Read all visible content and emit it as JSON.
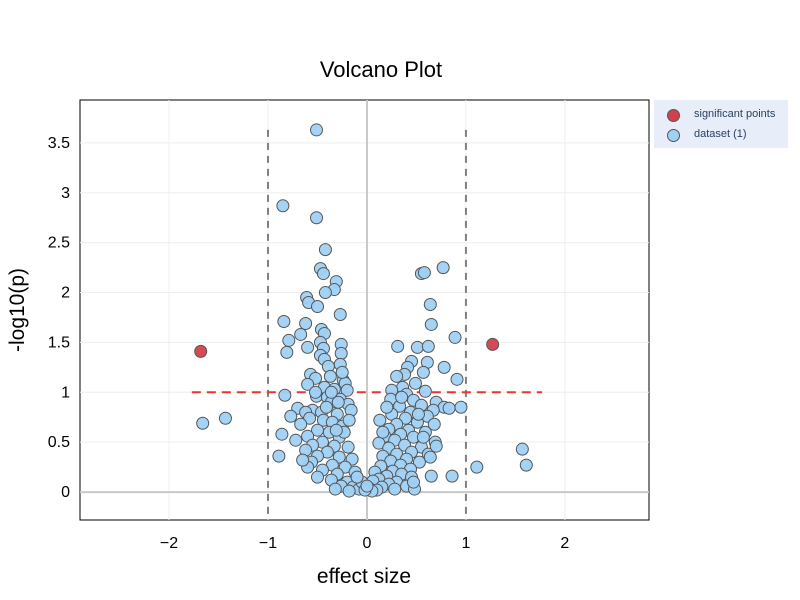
{
  "chart_data": {
    "type": "scatter",
    "title": "Volcano Plot",
    "xlabel": "effect size",
    "ylabel": "-log10(p)",
    "xlim": [
      -2.9,
      2.85
    ],
    "ylim": [
      -0.28,
      3.93
    ],
    "xticks": [
      -2,
      -1,
      0,
      1,
      2
    ],
    "xtick_labels": [
      "−2",
      "−1",
      "0",
      "1",
      "2"
    ],
    "yticks": [
      0,
      0.5,
      1,
      1.5,
      2,
      2.5,
      3,
      3.5
    ],
    "ytick_labels": [
      "0",
      "0.5",
      "1",
      "1.5",
      "2",
      "2.5",
      "3",
      "3.5"
    ],
    "grid": true,
    "legend_position": "top-right outside",
    "thresholds": {
      "x": [
        -1,
        1
      ],
      "y": 1,
      "vertical_line_color": "#808080",
      "horizontal_line_color": "#ee3333"
    },
    "series": [
      {
        "name": "significant points",
        "color": "#d2404c",
        "points": [
          [
            -1.68,
            1.41
          ],
          [
            1.27,
            1.48
          ]
        ]
      },
      {
        "name": "dataset (1)",
        "color": "#9fd1f5",
        "points": [
          [
            -0.51,
            3.63
          ],
          [
            -0.85,
            2.87
          ],
          [
            -0.51,
            2.75
          ],
          [
            -0.42,
            2.43
          ],
          [
            -0.47,
            2.24
          ],
          [
            -0.44,
            2.19
          ],
          [
            -0.31,
            2.11
          ],
          [
            -0.33,
            2.03
          ],
          [
            -0.42,
            2.0
          ],
          [
            -0.61,
            1.95
          ],
          [
            -0.59,
            1.9
          ],
          [
            -0.5,
            1.86
          ],
          [
            -0.27,
            1.78
          ],
          [
            -0.84,
            1.71
          ],
          [
            -0.62,
            1.69
          ],
          [
            -0.46,
            1.63
          ],
          [
            -0.43,
            1.59
          ],
          [
            -0.67,
            1.58
          ],
          [
            -0.79,
            1.52
          ],
          [
            -0.47,
            1.5
          ],
          [
            -0.26,
            1.48
          ],
          [
            -0.6,
            1.45
          ],
          [
            -0.44,
            1.44
          ],
          [
            -0.81,
            1.4
          ],
          [
            -0.26,
            1.39
          ],
          [
            -0.47,
            1.37
          ],
          [
            -0.43,
            1.33
          ],
          [
            -0.27,
            1.28
          ],
          [
            -0.39,
            1.26
          ],
          [
            -0.57,
            1.18
          ],
          [
            -0.37,
            1.16
          ],
          [
            -0.52,
            1.14
          ],
          [
            -0.24,
            1.12
          ],
          [
            -0.22,
            1.09
          ],
          [
            -0.6,
            1.08
          ],
          [
            -0.43,
            1.05
          ],
          [
            -0.33,
            1.03
          ],
          [
            -0.2,
            1.02
          ],
          [
            -0.83,
            0.97
          ],
          [
            -0.51,
            0.96
          ],
          [
            -0.4,
            0.95
          ],
          [
            -0.27,
            0.93
          ],
          [
            -0.36,
            0.9
          ],
          [
            -0.19,
            0.88
          ],
          [
            -0.7,
            0.84
          ],
          [
            -0.55,
            0.82
          ],
          [
            -0.46,
            0.8
          ],
          [
            -0.62,
            0.8
          ],
          [
            -0.3,
            0.78
          ],
          [
            -0.16,
            0.82
          ],
          [
            -0.77,
            0.76
          ],
          [
            -0.58,
            0.74
          ],
          [
            -0.44,
            0.72
          ],
          [
            -0.35,
            0.7
          ],
          [
            -0.67,
            0.68
          ],
          [
            -0.25,
            0.66
          ],
          [
            -0.5,
            0.62
          ],
          [
            -0.38,
            0.6
          ],
          [
            -0.6,
            0.56
          ],
          [
            -0.28,
            0.55
          ],
          [
            -0.72,
            0.52
          ],
          [
            -0.45,
            0.5
          ],
          [
            -0.55,
            0.47
          ],
          [
            -0.33,
            0.46
          ],
          [
            -0.19,
            0.45
          ],
          [
            -0.62,
            0.42
          ],
          [
            -0.4,
            0.4
          ],
          [
            -0.5,
            0.36
          ],
          [
            -0.28,
            0.35
          ],
          [
            -0.15,
            0.33
          ],
          [
            -0.56,
            0.3
          ],
          [
            -0.35,
            0.27
          ],
          [
            -0.22,
            0.25
          ],
          [
            -0.45,
            0.22
          ],
          [
            -0.3,
            0.18
          ],
          [
            -0.12,
            0.2
          ],
          [
            -0.5,
            0.15
          ],
          [
            -0.36,
            0.12
          ],
          [
            -0.2,
            0.1
          ],
          [
            -0.26,
            0.06
          ],
          [
            -0.14,
            0.05
          ],
          [
            -0.08,
            0.03
          ],
          [
            -0.32,
            0.03
          ],
          [
            -0.18,
            0.01
          ],
          [
            -0.05,
            0.1
          ],
          [
            -0.1,
            0.15
          ],
          [
            -0.6,
            0.25
          ],
          [
            -0.65,
            0.32
          ],
          [
            -0.86,
            0.58
          ],
          [
            -0.89,
            0.36
          ],
          [
            -1.66,
            0.69
          ],
          [
            -1.43,
            0.74
          ],
          [
            -0.23,
            0.6
          ],
          [
            -0.31,
            0.62
          ],
          [
            -0.41,
            0.85
          ],
          [
            -0.18,
            0.72
          ],
          [
            -0.52,
            1.0
          ],
          [
            -0.36,
            1.0
          ],
          [
            -0.29,
            0.9
          ],
          [
            -0.25,
            1.2
          ],
          [
            0.55,
            2.19
          ],
          [
            0.58,
            2.2
          ],
          [
            0.77,
            2.25
          ],
          [
            0.64,
            1.88
          ],
          [
            0.65,
            1.68
          ],
          [
            0.89,
            1.55
          ],
          [
            0.31,
            1.46
          ],
          [
            0.51,
            1.45
          ],
          [
            0.62,
            1.46
          ],
          [
            0.45,
            1.31
          ],
          [
            0.61,
            1.3
          ],
          [
            0.41,
            1.25
          ],
          [
            0.78,
            1.25
          ],
          [
            0.57,
            1.2
          ],
          [
            0.38,
            1.18
          ],
          [
            0.3,
            1.16
          ],
          [
            0.91,
            1.13
          ],
          [
            0.49,
            1.09
          ],
          [
            0.36,
            1.05
          ],
          [
            0.25,
            1.02
          ],
          [
            0.59,
            1.01
          ],
          [
            0.4,
            0.98
          ],
          [
            0.24,
            0.93
          ],
          [
            0.47,
            0.92
          ],
          [
            0.7,
            0.9
          ],
          [
            0.55,
            0.87
          ],
          [
            0.33,
            0.86
          ],
          [
            0.78,
            0.85
          ],
          [
            0.83,
            0.84
          ],
          [
            0.95,
            0.85
          ],
          [
            0.67,
            0.82
          ],
          [
            0.44,
            0.8
          ],
          [
            0.25,
            0.78
          ],
          [
            0.61,
            0.76
          ],
          [
            0.39,
            0.74
          ],
          [
            0.13,
            0.72
          ],
          [
            0.51,
            0.7
          ],
          [
            0.3,
            0.68
          ],
          [
            0.68,
            0.68
          ],
          [
            0.22,
            0.63
          ],
          [
            0.42,
            0.62
          ],
          [
            0.59,
            0.6
          ],
          [
            0.34,
            0.58
          ],
          [
            0.18,
            0.56
          ],
          [
            0.47,
            0.55
          ],
          [
            0.28,
            0.52
          ],
          [
            0.69,
            0.5
          ],
          [
            0.12,
            0.49
          ],
          [
            0.38,
            0.47
          ],
          [
            0.55,
            0.45
          ],
          [
            0.22,
            0.44
          ],
          [
            0.45,
            0.4
          ],
          [
            0.3,
            0.38
          ],
          [
            0.62,
            0.38
          ],
          [
            0.16,
            0.36
          ],
          [
            0.4,
            0.33
          ],
          [
            0.24,
            0.31
          ],
          [
            0.53,
            0.3
          ],
          [
            0.34,
            0.27
          ],
          [
            0.14,
            0.26
          ],
          [
            0.44,
            0.23
          ],
          [
            0.26,
            0.21
          ],
          [
            0.08,
            0.2
          ],
          [
            0.35,
            0.18
          ],
          [
            0.2,
            0.16
          ],
          [
            0.45,
            0.15
          ],
          [
            0.12,
            0.13
          ],
          [
            0.3,
            0.1
          ],
          [
            0.06,
            0.11
          ],
          [
            0.22,
            0.08
          ],
          [
            0.4,
            0.06
          ],
          [
            0.15,
            0.05
          ],
          [
            0.02,
            0.04
          ],
          [
            0.28,
            0.03
          ],
          [
            0.48,
            0.03
          ],
          [
            0.1,
            0.02
          ],
          [
            0.05,
            0.01
          ],
          [
            -0.02,
            0.02
          ],
          [
            0.0,
            0.06
          ],
          [
            0.65,
            0.16
          ],
          [
            0.86,
            0.16
          ],
          [
            1.11,
            0.25
          ],
          [
            1.57,
            0.43
          ],
          [
            1.61,
            0.27
          ],
          [
            0.7,
            0.46
          ],
          [
            0.64,
            0.35
          ],
          [
            0.47,
            0.1
          ],
          [
            0.57,
            0.55
          ],
          [
            0.52,
            0.78
          ],
          [
            0.2,
            0.85
          ],
          [
            0.35,
            0.95
          ],
          [
            0.16,
            0.6
          ]
        ]
      }
    ]
  }
}
